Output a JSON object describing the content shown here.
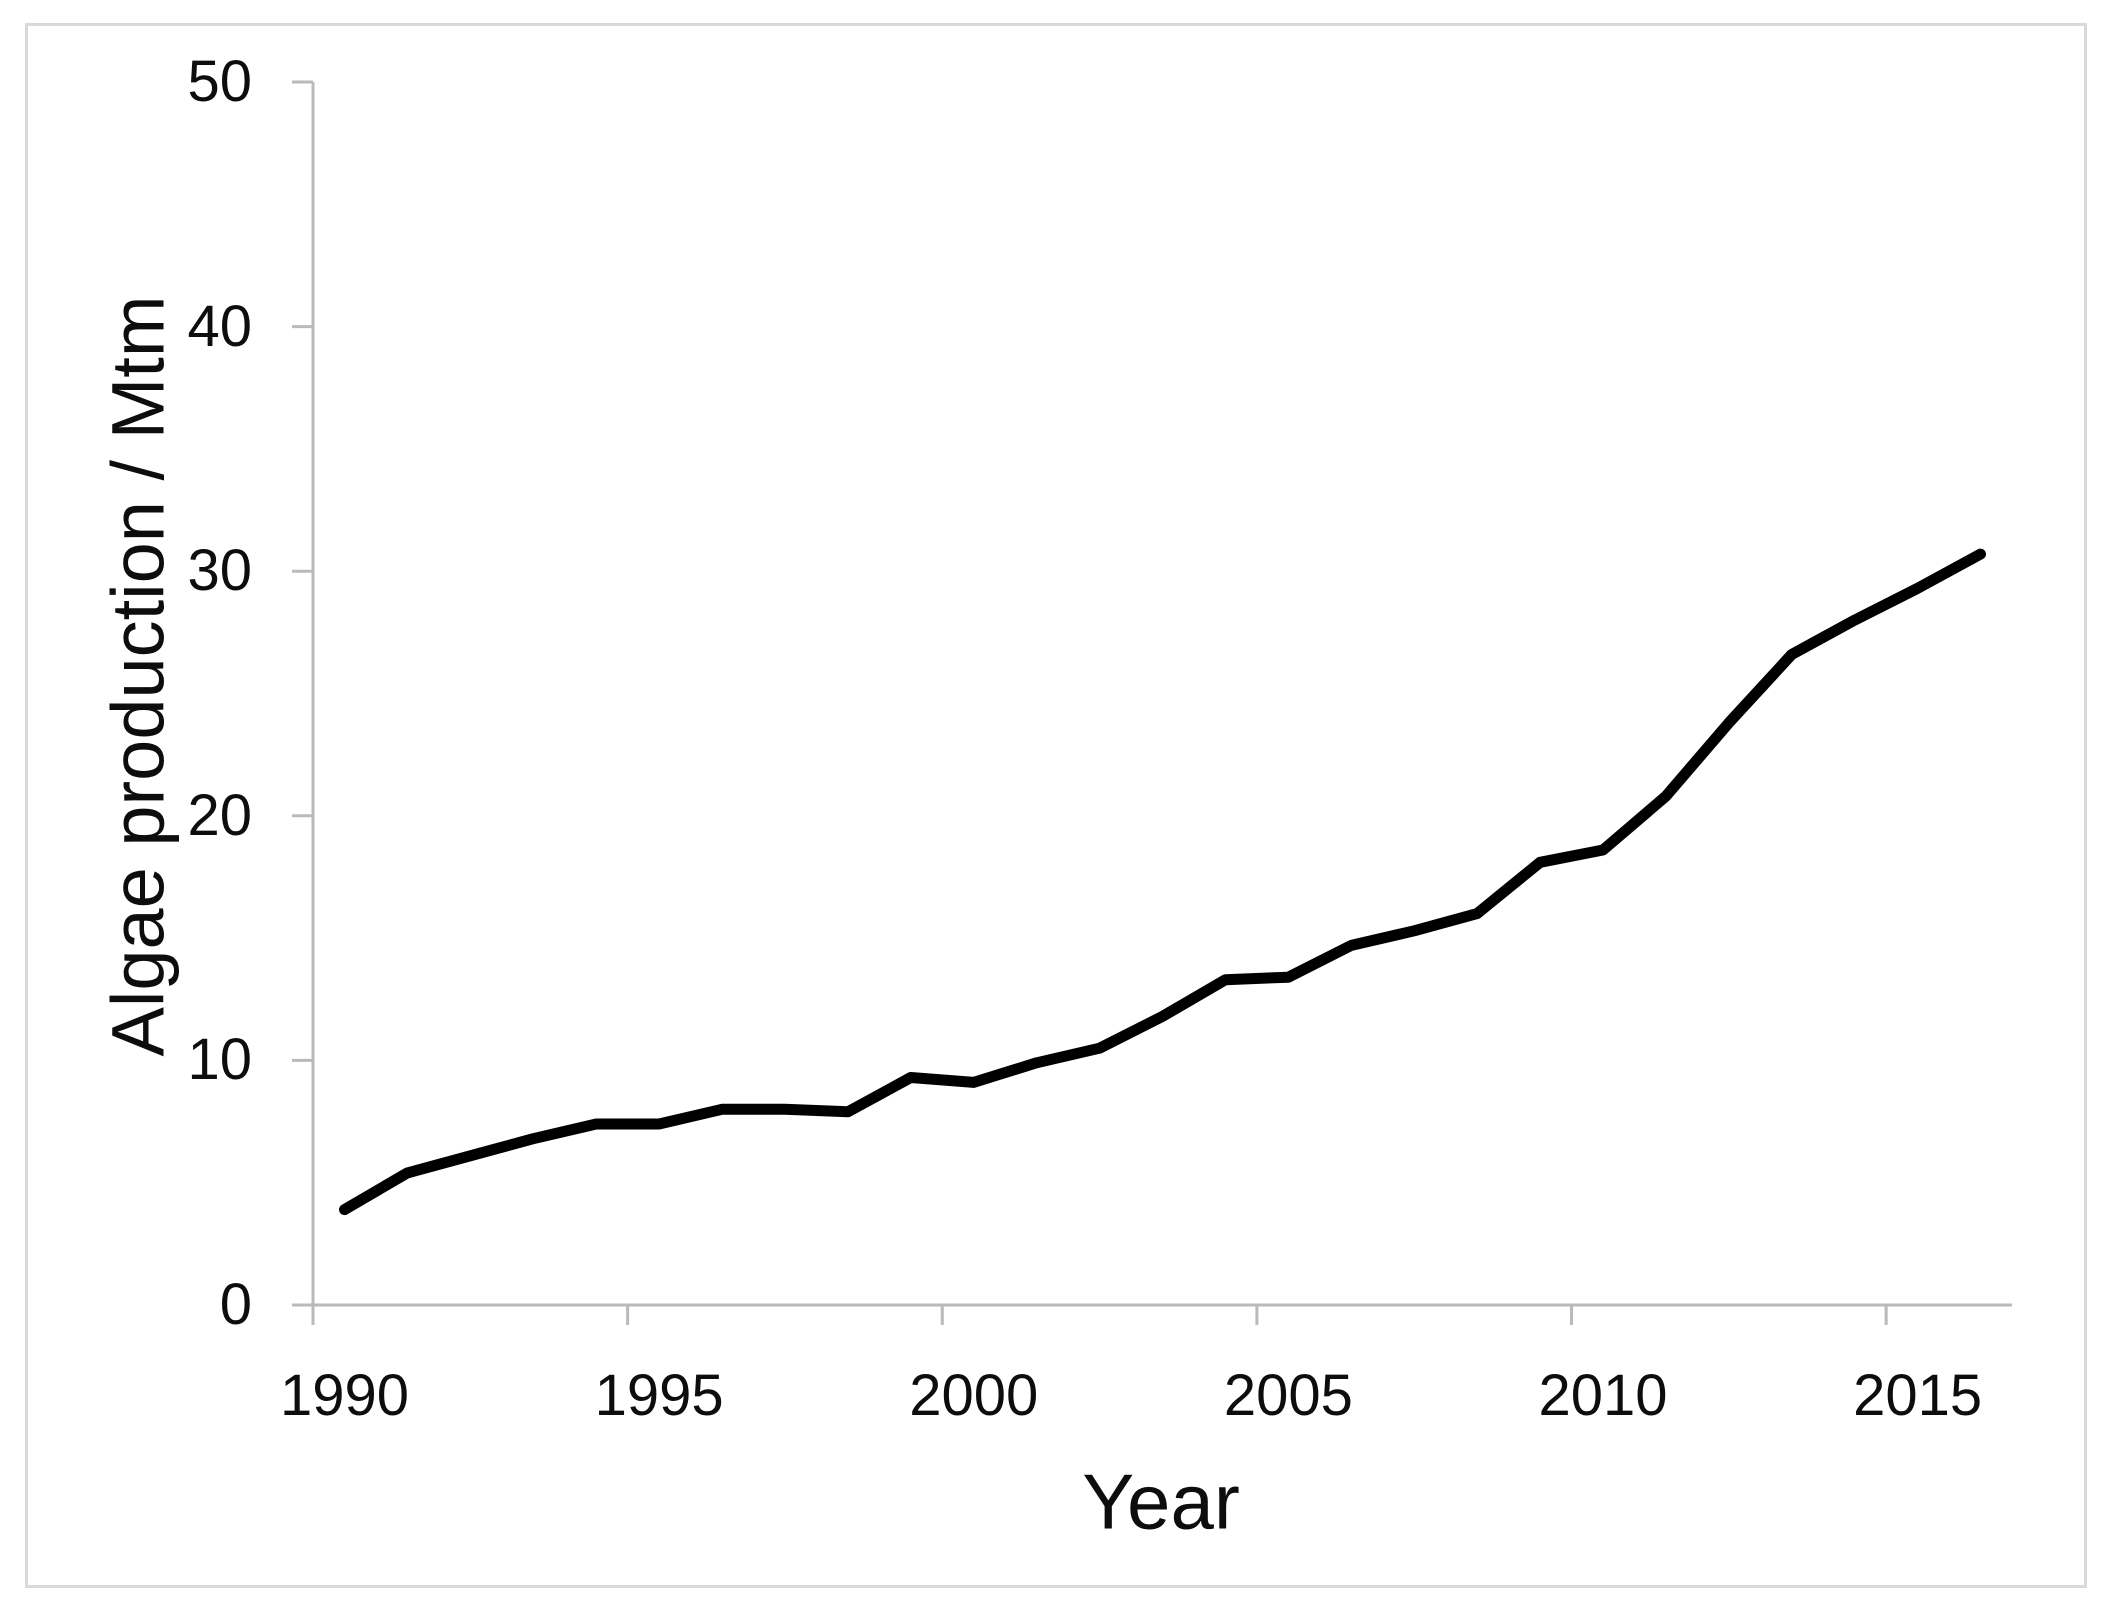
{
  "chart_data": {
    "type": "line",
    "title": "",
    "xlabel": "Year",
    "ylabel": "Algae production / Mtm",
    "x": [
      1990,
      1991,
      1992,
      1993,
      1994,
      1995,
      1996,
      1997,
      1998,
      1999,
      2000,
      2001,
      2002,
      2003,
      2004,
      2005,
      2006,
      2007,
      2008,
      2009,
      2010,
      2011,
      2012,
      2013,
      2014,
      2015,
      2016
    ],
    "series": [
      {
        "name": "Algae production",
        "values": [
          3.9,
          5.4,
          6.1,
          6.8,
          7.4,
          7.4,
          8.0,
          8.0,
          7.9,
          9.3,
          9.1,
          9.9,
          10.5,
          11.8,
          13.3,
          13.4,
          14.7,
          15.3,
          16.0,
          18.1,
          18.6,
          20.8,
          23.8,
          26.6,
          28.0,
          29.3,
          30.7
        ]
      }
    ],
    "xticks": [
      1990,
      1995,
      2000,
      2005,
      2010,
      2015
    ],
    "yticks": [
      0,
      10,
      20,
      30,
      40,
      50
    ],
    "ylim": [
      0,
      50
    ],
    "grid": false,
    "legend_position": "none",
    "line_color": "#000000",
    "axis_color": "#bababa",
    "text_color": "#0d0d0d",
    "frame_color": "#d9d9d9"
  }
}
